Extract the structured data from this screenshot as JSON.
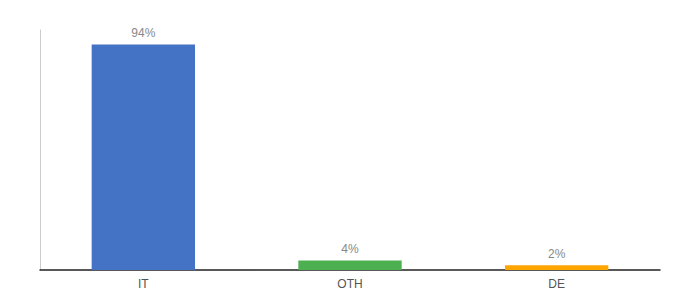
{
  "chart_data": {
    "type": "bar",
    "categories": [
      "IT",
      "OTH",
      "DE"
    ],
    "values": [
      94,
      4,
      2
    ],
    "value_labels": [
      "94%",
      "4%",
      "2%"
    ],
    "colors": [
      "#4472c4",
      "#4caf50",
      "#ffa500"
    ],
    "ylim": [
      0,
      100
    ],
    "grid": false,
    "data_labels": true,
    "tick_labels": "x"
  }
}
